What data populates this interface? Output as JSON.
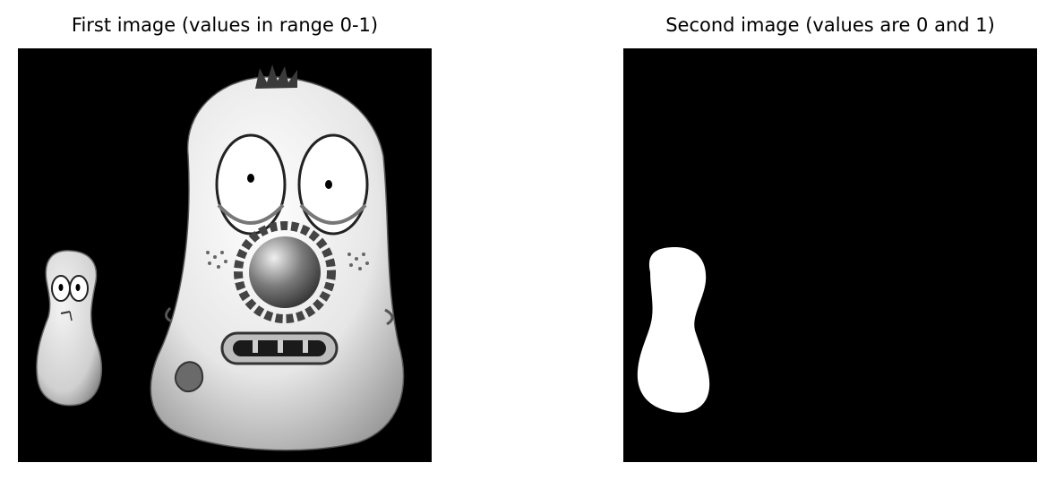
{
  "panels": [
    {
      "title": "First image (values in range 0-1)",
      "content": "grayscale illustration of two cartoon characters on black background"
    },
    {
      "title": "Second image (values are 0 and 1)",
      "content": "binary mask of small left character on black background"
    }
  ],
  "colors": {
    "background": "#ffffff",
    "image_bg": "#000000",
    "foreground": "#ffffff"
  }
}
